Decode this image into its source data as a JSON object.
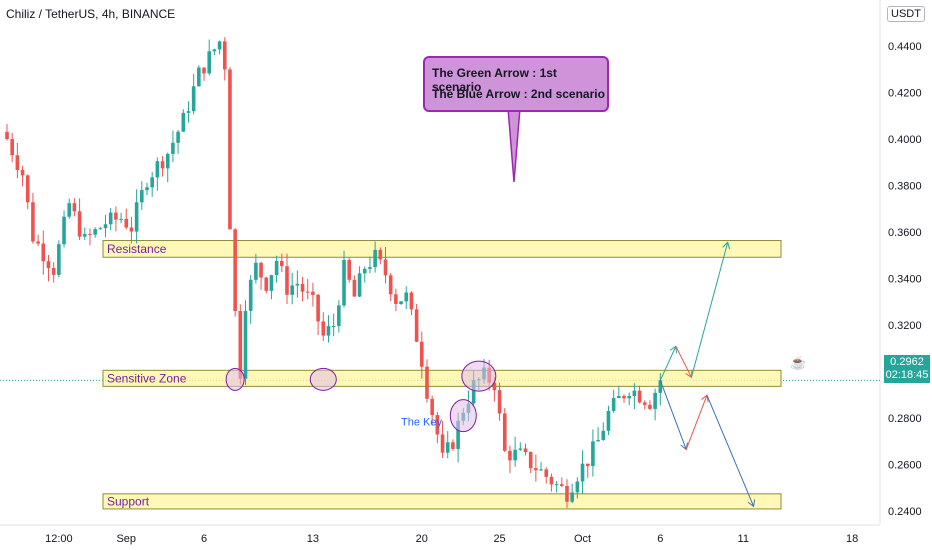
{
  "header": {
    "title": "Chiliz / TetherUS, 4h, BINANCE",
    "currency": "USDT"
  },
  "price_tag": {
    "price": "0.2962",
    "countdown": "02:18:45",
    "color": "#26a69a"
  },
  "callout": {
    "line1": "The Green Arrow : 1st scenario",
    "line2": "The Blue Arrow : 2nd scenario",
    "fill": "#ce93d8",
    "border": "#9c27b0"
  },
  "colors": {
    "up": "#26a69a",
    "down": "#ef5350",
    "zone_fill": "#fff59d",
    "zone_border": "#8d8d3a",
    "label_text": "#7b1fa2",
    "key_text": "#2962ff",
    "green_arrow": "#26a69a",
    "blue_arrow": "#3f6fb5",
    "red_arrow": "#ef5350",
    "circle_fill": "#e1bee7",
    "circle_stroke": "#7b1fa2"
  },
  "icons": [
    "cup-icon"
  ],
  "chart_data": {
    "type": "candlestick",
    "title": "Chiliz / TetherUS, 4h, BINANCE",
    "ylim": [
      0.234,
      0.4597
    ],
    "y_ticks": [
      "0.4400",
      "0.4200",
      "0.4000",
      "0.3800",
      "0.3600",
      "0.3400",
      "0.3200",
      "0.3000",
      "0.2800",
      "0.2600",
      "0.2400"
    ],
    "y_tick_values": [
      0.44,
      0.42,
      0.4,
      0.38,
      0.36,
      0.34,
      0.32,
      0.3,
      0.28,
      0.26,
      0.24
    ],
    "x_labels": [
      "12:00",
      "Sep",
      "6",
      "13",
      "20",
      "25",
      "Oct",
      "6",
      "11",
      "18"
    ],
    "x_label_index": [
      10,
      23,
      38,
      59,
      80,
      95,
      111,
      126,
      142,
      163
    ],
    "last_price": 0.2962,
    "price_keypoints": [
      [
        0,
        0.4
      ],
      [
        3,
        0.385
      ],
      [
        5,
        0.358
      ],
      [
        9,
        0.344
      ],
      [
        12,
        0.372
      ],
      [
        15,
        0.356
      ],
      [
        19,
        0.364
      ],
      [
        22,
        0.366
      ],
      [
        24,
        0.362
      ],
      [
        27,
        0.383
      ],
      [
        31,
        0.394
      ],
      [
        34,
        0.408
      ],
      [
        37,
        0.428
      ],
      [
        39,
        0.435
      ],
      [
        41,
        0.442
      ],
      [
        42,
        0.432
      ],
      [
        43,
        0.364
      ],
      [
        44,
        0.325
      ],
      [
        45,
        0.3
      ],
      [
        46,
        0.33
      ],
      [
        48,
        0.345
      ],
      [
        50,
        0.338
      ],
      [
        52,
        0.348
      ],
      [
        54,
        0.336
      ],
      [
        56,
        0.338
      ],
      [
        59,
        0.329
      ],
      [
        61,
        0.315
      ],
      [
        63,
        0.32
      ],
      [
        65,
        0.344
      ],
      [
        67,
        0.332
      ],
      [
        69,
        0.345
      ],
      [
        71,
        0.349
      ],
      [
        73,
        0.342
      ],
      [
        75,
        0.331
      ],
      [
        77,
        0.332
      ],
      [
        79,
        0.315
      ],
      [
        80,
        0.305
      ],
      [
        81,
        0.292
      ],
      [
        83,
        0.273
      ],
      [
        84,
        0.262
      ],
      [
        86,
        0.27
      ],
      [
        88,
        0.284
      ],
      [
        90,
        0.294
      ],
      [
        92,
        0.298
      ],
      [
        94,
        0.295
      ],
      [
        96,
        0.265
      ],
      [
        99,
        0.264
      ],
      [
        103,
        0.257
      ],
      [
        106,
        0.251
      ],
      [
        108,
        0.248
      ],
      [
        110,
        0.256
      ],
      [
        112,
        0.262
      ],
      [
        114,
        0.27
      ],
      [
        116,
        0.282
      ],
      [
        118,
        0.288
      ],
      [
        120,
        0.293
      ],
      [
        122,
        0.29
      ],
      [
        124,
        0.287
      ],
      [
        126,
        0.296
      ]
    ],
    "zones": [
      {
        "label": "Resistance",
        "y_low": 0.3491,
        "y_high": 0.3563
      },
      {
        "label": "Sensitive Zone",
        "y_low": 0.2936,
        "y_high": 0.3005
      },
      {
        "label": "Support",
        "y_low": 0.2409,
        "y_high": 0.2474
      }
    ],
    "annotations": [
      {
        "text": "The Key",
        "x_index": 81,
        "y": 0.2785
      }
    ],
    "circles": [
      {
        "x_index": 44,
        "y": 0.2966
      },
      {
        "x_index": 61,
        "y": 0.2966
      },
      {
        "x_index": 91,
        "y": 0.298
      },
      {
        "x_index": 88,
        "y": 0.281
      }
    ],
    "scenario_arrows": [
      {
        "name": "green",
        "points": [
          [
            126,
            0.2962
          ],
          [
            129,
            0.3108
          ],
          [
            132,
            0.2975
          ],
          [
            139,
            0.3555
          ]
        ]
      },
      {
        "name": "blue",
        "points": [
          [
            126,
            0.2962
          ],
          [
            131,
            0.2665
          ],
          [
            135,
            0.2898
          ],
          [
            144,
            0.242
          ]
        ]
      }
    ]
  }
}
